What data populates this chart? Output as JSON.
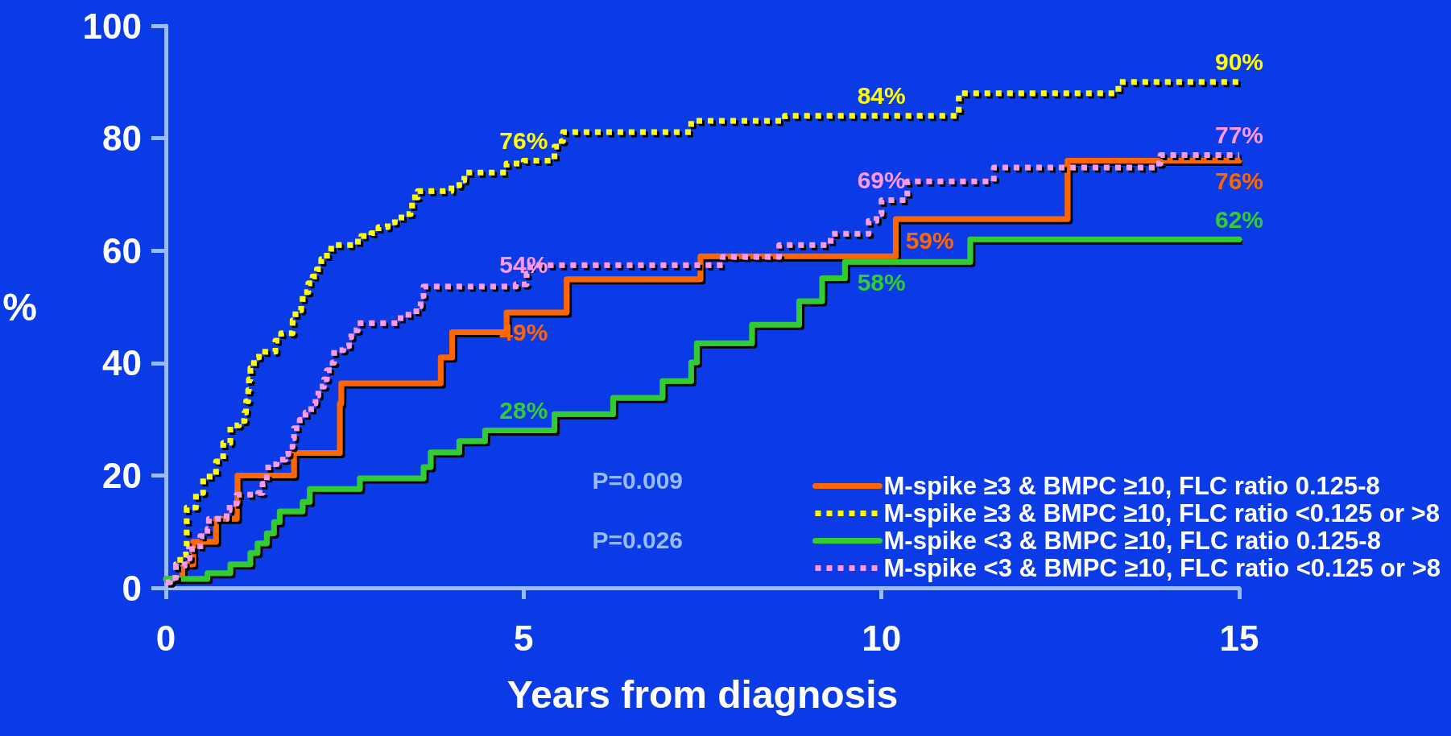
{
  "chart_data": {
    "type": "step",
    "xlabel": "Years from diagnosis",
    "ylabel": "%",
    "xlim": [
      0,
      15
    ],
    "xticks": [
      0,
      5,
      10,
      15
    ],
    "ylim": [
      0,
      100
    ],
    "yticks": [
      0,
      20,
      40,
      60,
      80,
      100
    ],
    "grid": false,
    "legend": "bottom right",
    "marker": "none",
    "series": [
      {
        "name": "M-spike ≥3 & BMPC ≥10, FLC ratio 0.125-8",
        "color": "#ff6600",
        "line_style": "solid",
        "x": [
          0,
          0.23,
          0.38,
          0.7,
          0.99,
          1.0,
          1.79,
          2.43,
          2.45,
          3.84,
          4.0,
          4.76,
          5,
          5.6,
          7.47,
          10,
          10.2,
          12.6,
          15
        ],
        "values": [
          1.6,
          4.2,
          8.2,
          12.3,
          15.3,
          20,
          24,
          32.8,
          36.4,
          41,
          45.5,
          49,
          49,
          54.9,
          59,
          59,
          65.6,
          76,
          76
        ],
        "value_labels": [
          null,
          null,
          null,
          null,
          null,
          null,
          null,
          null,
          null,
          null,
          null,
          null,
          "49%",
          null,
          null,
          "59%",
          null,
          null,
          "76%"
        ]
      },
      {
        "name": "M-spike ≥3 & BMPC ≥10, FLC ratio <0.125 or >8",
        "color": "#ffff00",
        "line_style": "dotted",
        "x": [
          0,
          0.06,
          0.14,
          0.2,
          0.28,
          0.29,
          0.42,
          0.52,
          0.7,
          0.8,
          0.9,
          1.02,
          1.1,
          1.12,
          1.15,
          1.16,
          1.18,
          1.23,
          1.3,
          1.53,
          1.61,
          1.77,
          1.81,
          1.89,
          1.91,
          1.99,
          2.05,
          2.11,
          2.17,
          2.25,
          2.31,
          2.63,
          2.73,
          2.87,
          2.97,
          3.1,
          3.2,
          3.34,
          3.42,
          3.44,
          3.52,
          3.99,
          4.1,
          4.17,
          4.76,
          5,
          5.43,
          5.53,
          5.55,
          7.34,
          8.65,
          10,
          11.08,
          13.31,
          15
        ],
        "values": [
          1.0,
          1.8,
          4.2,
          5.9,
          7.4,
          14.3,
          16.9,
          19.8,
          22.5,
          25.8,
          28.9,
          29.7,
          31.2,
          33.2,
          35.2,
          37.1,
          39.1,
          41,
          42,
          44,
          45.3,
          47.6,
          49.4,
          50.6,
          52.6,
          54.2,
          55.4,
          56.7,
          58.5,
          59.8,
          61,
          61.6,
          62.6,
          63.1,
          64.2,
          65,
          65.9,
          66.5,
          67.5,
          69.5,
          70.6,
          71.6,
          72.5,
          73.9,
          75.5,
          76,
          78.5,
          79.5,
          81.1,
          83.1,
          84,
          84,
          88.0,
          90,
          90
        ],
        "value_labels": [
          null,
          null,
          null,
          null,
          null,
          null,
          null,
          null,
          null,
          null,
          null,
          null,
          null,
          null,
          null,
          null,
          null,
          null,
          null,
          null,
          null,
          null,
          null,
          null,
          null,
          null,
          null,
          null,
          null,
          null,
          null,
          null,
          null,
          null,
          null,
          null,
          null,
          null,
          null,
          null,
          null,
          null,
          null,
          null,
          null,
          "76%",
          null,
          null,
          null,
          null,
          null,
          "84%",
          null,
          null,
          "90%"
        ]
      },
      {
        "name": "M-spike <3 & BMPC ≥10, FLC ratio 0.125-8",
        "color": "#33cc33",
        "line_style": "solid",
        "x": [
          0,
          0.58,
          0.9,
          1.18,
          1.28,
          1.41,
          1.51,
          1.59,
          1.91,
          2.01,
          2.71,
          3.6,
          3.7,
          4.1,
          4.46,
          5,
          5.43,
          6.25,
          6.94,
          7.34,
          7.42,
          8.19,
          8.85,
          9.17,
          9.49,
          10,
          11.24,
          15
        ],
        "values": [
          1.6,
          2.6,
          4.2,
          6.2,
          7.9,
          9.7,
          11.7,
          13.6,
          15.3,
          17.6,
          19.5,
          21.5,
          24.1,
          26.1,
          28,
          28,
          30.9,
          33.8,
          36.8,
          40.1,
          43.5,
          46.8,
          51,
          55.1,
          58,
          58,
          62,
          62
        ],
        "value_labels": [
          null,
          null,
          null,
          null,
          null,
          null,
          null,
          null,
          null,
          null,
          null,
          null,
          null,
          null,
          null,
          "28%",
          null,
          null,
          null,
          null,
          null,
          null,
          null,
          null,
          null,
          "58%",
          null,
          "62%"
        ]
      },
      {
        "name": "M-spike <3 & BMPC ≥10, FLC ratio <0.125 or >8",
        "color": "#ff99ee",
        "line_style": "dotted",
        "x": [
          0,
          0.06,
          0.14,
          0.26,
          0.33,
          0.48,
          0.58,
          0.6,
          0.85,
          0.89,
          0.99,
          1.29,
          1.35,
          1.41,
          1.43,
          1.55,
          1.67,
          1.71,
          1.77,
          1.79,
          1.87,
          1.95,
          2.03,
          2.09,
          2.13,
          2.21,
          2.25,
          2.33,
          2.35,
          2.48,
          2.56,
          2.59,
          2.68,
          3.28,
          3.5,
          3.56,
          3.6,
          4.89,
          5,
          5.04,
          5.09,
          7.78,
          8.57,
          9.29,
          9.82,
          9.93,
          10,
          10.36,
          11.57,
          13.84,
          13.9,
          15
        ],
        "values": [
          1.0,
          1.8,
          3.9,
          5.2,
          6.9,
          9.2,
          10.5,
          12.3,
          13.8,
          15,
          16.6,
          16.9,
          18.5,
          20.5,
          22,
          22.8,
          23.8,
          25.1,
          26.6,
          28.4,
          29.9,
          31.2,
          32.8,
          34.2,
          35.8,
          37.1,
          38.7,
          40.1,
          42.3,
          43,
          44.6,
          45.8,
          47.1,
          48.6,
          50.1,
          51.9,
          53.6,
          54,
          54,
          55.9,
          57.4,
          58.9,
          61,
          63,
          65.3,
          66.5,
          69,
          72.3,
          74.8,
          75.5,
          77,
          77
        ],
        "value_labels": [
          null,
          null,
          null,
          null,
          null,
          null,
          null,
          null,
          null,
          null,
          null,
          null,
          null,
          null,
          null,
          null,
          null,
          null,
          null,
          null,
          null,
          null,
          null,
          null,
          null,
          null,
          null,
          null,
          null,
          null,
          null,
          null,
          null,
          null,
          null,
          null,
          null,
          null,
          "54%",
          null,
          null,
          null,
          null,
          null,
          null,
          null,
          "69%",
          null,
          null,
          null,
          null,
          "77%"
        ]
      }
    ],
    "annotations": [
      "P=0.009",
      "P=0.026"
    ]
  }
}
